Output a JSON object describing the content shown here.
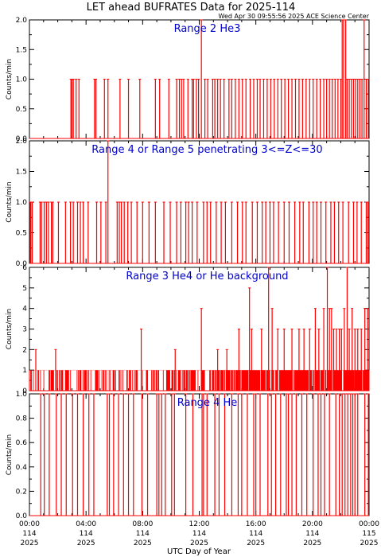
{
  "page": {
    "title": "LET ahead BUFRATES Data for 2025-114",
    "stamp": "Wed Apr 30 09:55:56 2025 ACE Science Center",
    "xlabel": "UTC Day of Year"
  },
  "colors": {
    "axes": "#000000",
    "data": "#ff0000",
    "label": "#0000cc"
  },
  "chart_data": [
    {
      "type": "line",
      "title": "Range 2 He3",
      "ylabel": "Counts/min",
      "xlim": [
        0,
        24
      ],
      "ylim": [
        0,
        2
      ],
      "yticks": [
        "0.0",
        "0.5",
        "1.0",
        "1.5",
        "2.0"
      ],
      "x_hours": [
        2.93,
        3.0,
        3.1,
        3.3,
        3.5,
        4.6,
        4.7,
        5.3,
        5.55,
        6.4,
        7.0,
        7.8,
        8.9,
        9.2,
        9.85,
        10.4,
        10.6,
        10.75,
        10.9,
        11.2,
        11.5,
        11.6,
        11.8,
        11.95,
        12.15,
        12.4,
        12.6,
        12.95,
        13.1,
        13.3,
        13.5,
        13.75,
        14.1,
        14.3,
        14.55,
        14.8,
        15.05,
        15.3,
        15.6,
        15.85,
        16.1,
        16.3,
        16.55,
        16.8,
        17.05,
        17.3,
        17.55,
        17.8,
        18.05,
        18.3,
        18.55,
        18.8,
        19.05,
        19.3,
        19.55,
        19.8,
        20.05,
        20.3,
        20.55,
        20.8,
        21.0,
        21.2,
        21.4,
        21.6,
        21.8,
        22.0,
        22.1,
        22.2,
        22.35,
        22.45,
        22.6,
        22.75,
        22.9,
        23.05,
        23.2,
        23.35,
        23.5,
        23.65,
        23.8,
        23.95
      ],
      "y_counts": [
        1,
        1,
        1,
        1,
        1,
        1,
        1,
        1,
        1,
        1,
        1,
        1,
        1,
        1,
        1,
        1,
        1,
        1,
        1,
        1,
        1,
        1,
        1,
        1,
        2,
        1,
        1,
        1,
        1,
        1,
        1,
        1,
        1,
        1,
        1,
        1,
        1,
        1,
        1,
        1,
        1,
        1,
        1,
        1,
        1,
        1,
        1,
        1,
        1,
        1,
        1,
        1,
        1,
        1,
        1,
        1,
        1,
        1,
        1,
        1,
        1,
        1,
        1,
        1,
        1,
        1,
        2,
        2,
        2,
        1,
        1,
        1,
        1,
        1,
        1,
        1,
        1,
        2,
        1,
        1
      ]
    },
    {
      "type": "line",
      "title": "Range 4 or Range 5 penetrating 3<=Z<=30",
      "ylabel": "Counts/min",
      "xlim": [
        0,
        24
      ],
      "ylim": [
        0,
        2
      ],
      "yticks": [
        "0.0",
        "0.5",
        "1.0",
        "1.5",
        "2.0"
      ],
      "x_hours": [
        0.05,
        0.1,
        0.2,
        0.75,
        0.85,
        1.05,
        1.2,
        1.35,
        1.55,
        1.65,
        2.05,
        2.55,
        2.9,
        3.1,
        3.4,
        3.6,
        3.8,
        4.15,
        4.75,
        5.05,
        5.4,
        5.55,
        6.2,
        6.35,
        6.5,
        6.7,
        6.95,
        7.2,
        7.6,
        8.0,
        8.45,
        8.9,
        9.5,
        9.95,
        10.4,
        10.7,
        11.05,
        11.25,
        11.5,
        11.85,
        12.3,
        12.55,
        12.8,
        13.2,
        13.55,
        13.85,
        14.3,
        14.7,
        15.05,
        15.3,
        15.75,
        16.1,
        16.45,
        16.7,
        17.0,
        17.25,
        17.6,
        18.0,
        18.35,
        18.75,
        19.1,
        19.35,
        19.75,
        20.05,
        20.3,
        20.6,
        20.95,
        21.3,
        21.55,
        21.85,
        22.15,
        22.55,
        22.9,
        23.15,
        23.45,
        23.8,
        23.92
      ],
      "y_counts": [
        1,
        1,
        1,
        1,
        1,
        1,
        1,
        1,
        1,
        1,
        1,
        1,
        1,
        1,
        1,
        1,
        1,
        1,
        1,
        1,
        1,
        2,
        1,
        1,
        1,
        1,
        1,
        1,
        1,
        1,
        1,
        1,
        1,
        1,
        1,
        1,
        1,
        1,
        1,
        1,
        1,
        1,
        1,
        1,
        1,
        1,
        1,
        1,
        1,
        1,
        1,
        1,
        1,
        1,
        1,
        1,
        1,
        1,
        1,
        1,
        1,
        1,
        1,
        1,
        1,
        1,
        1,
        1,
        1,
        1,
        1,
        1,
        1,
        1,
        1,
        1,
        1
      ]
    },
    {
      "type": "line",
      "title": "Range 3 He4 or He background",
      "ylabel": "Counts/min",
      "xlim": [
        0,
        24
      ],
      "ylim": [
        0,
        6
      ],
      "yticks": [
        "0",
        "1",
        "2",
        "3",
        "4",
        "5",
        "6"
      ],
      "noise_level": 1,
      "x_hours": [
        0.45,
        1.85,
        7.9,
        10.3,
        12.15,
        13.3,
        13.95,
        14.8,
        15.55,
        15.7,
        16.4,
        16.9,
        17.15,
        17.55,
        18.0,
        18.55,
        19.05,
        19.4,
        19.8,
        20.2,
        20.45,
        20.8,
        21.05,
        21.2,
        21.35,
        21.5,
        21.7,
        21.9,
        22.05,
        22.25,
        22.45,
        22.6,
        22.8,
        23.0,
        23.2,
        23.45,
        23.7,
        23.9
      ],
      "y_counts": [
        2,
        2,
        3,
        2,
        4,
        2,
        2,
        3,
        5,
        3,
        3,
        6,
        4,
        3,
        3,
        3,
        3,
        3,
        3,
        4,
        3,
        4,
        6,
        4,
        4,
        3,
        3,
        3,
        3,
        4,
        6,
        3,
        4,
        3,
        3,
        3,
        4,
        4
      ]
    },
    {
      "type": "line",
      "title": "Range 4 He",
      "ylabel": "Counts/min",
      "xlim": [
        0,
        24
      ],
      "ylim": [
        0,
        1
      ],
      "yticks": [
        "0.0",
        "0.2",
        "0.4",
        "0.6",
        "0.8",
        "1.0"
      ],
      "x_hours": [
        0.8,
        1.05,
        1.4,
        1.9,
        2.25,
        2.6,
        3.05,
        3.4,
        3.8,
        4.2,
        4.55,
        5.5,
        5.65,
        5.95,
        6.3,
        6.65,
        7.0,
        7.35,
        7.95,
        8.35,
        9.0,
        9.15,
        9.35,
        9.6,
        10.05,
        10.25,
        11.05,
        11.55,
        12.2,
        12.3,
        12.55,
        13.1,
        13.4,
        13.8,
        14.3,
        14.75,
        15.0,
        15.4,
        15.85,
        16.0,
        16.3,
        16.85,
        17.1,
        17.4,
        17.75,
        18.15,
        18.3,
        18.55,
        18.85,
        19.25,
        19.6,
        20.05,
        20.4,
        20.6,
        20.85,
        21.2,
        21.65,
        21.9,
        22.1,
        22.3,
        22.5,
        22.7,
        22.85,
        23.0,
        23.2,
        23.7,
        23.95
      ],
      "y_counts": [
        1,
        1,
        1,
        1,
        1,
        1,
        1,
        1,
        1,
        1,
        1,
        1,
        1,
        1,
        1,
        1,
        1,
        1,
        1,
        1,
        1,
        1,
        1,
        1,
        1,
        1,
        1,
        1,
        1,
        1,
        1,
        1,
        1,
        1,
        1,
        1,
        1,
        1,
        1,
        1,
        1,
        1,
        1,
        1,
        1,
        1,
        1,
        1,
        1,
        1,
        1,
        1,
        1,
        1,
        1,
        1,
        1,
        1,
        1,
        1,
        1,
        1,
        1,
        1,
        1,
        1,
        1
      ]
    }
  ],
  "x_axis": {
    "ticks": [
      {
        "time": "00:00",
        "doy": "114",
        "year": "2025"
      },
      {
        "time": "04:00",
        "doy": "114",
        "year": "2025"
      },
      {
        "time": "08:00",
        "doy": "114",
        "year": "2025"
      },
      {
        "time": "12:00",
        "doy": "114",
        "year": "2025"
      },
      {
        "time": "16:00",
        "doy": "114",
        "year": "2025"
      },
      {
        "time": "20:00",
        "doy": "114",
        "year": "2025"
      },
      {
        "time": "00:00",
        "doy": "115",
        "year": "2025"
      }
    ]
  }
}
